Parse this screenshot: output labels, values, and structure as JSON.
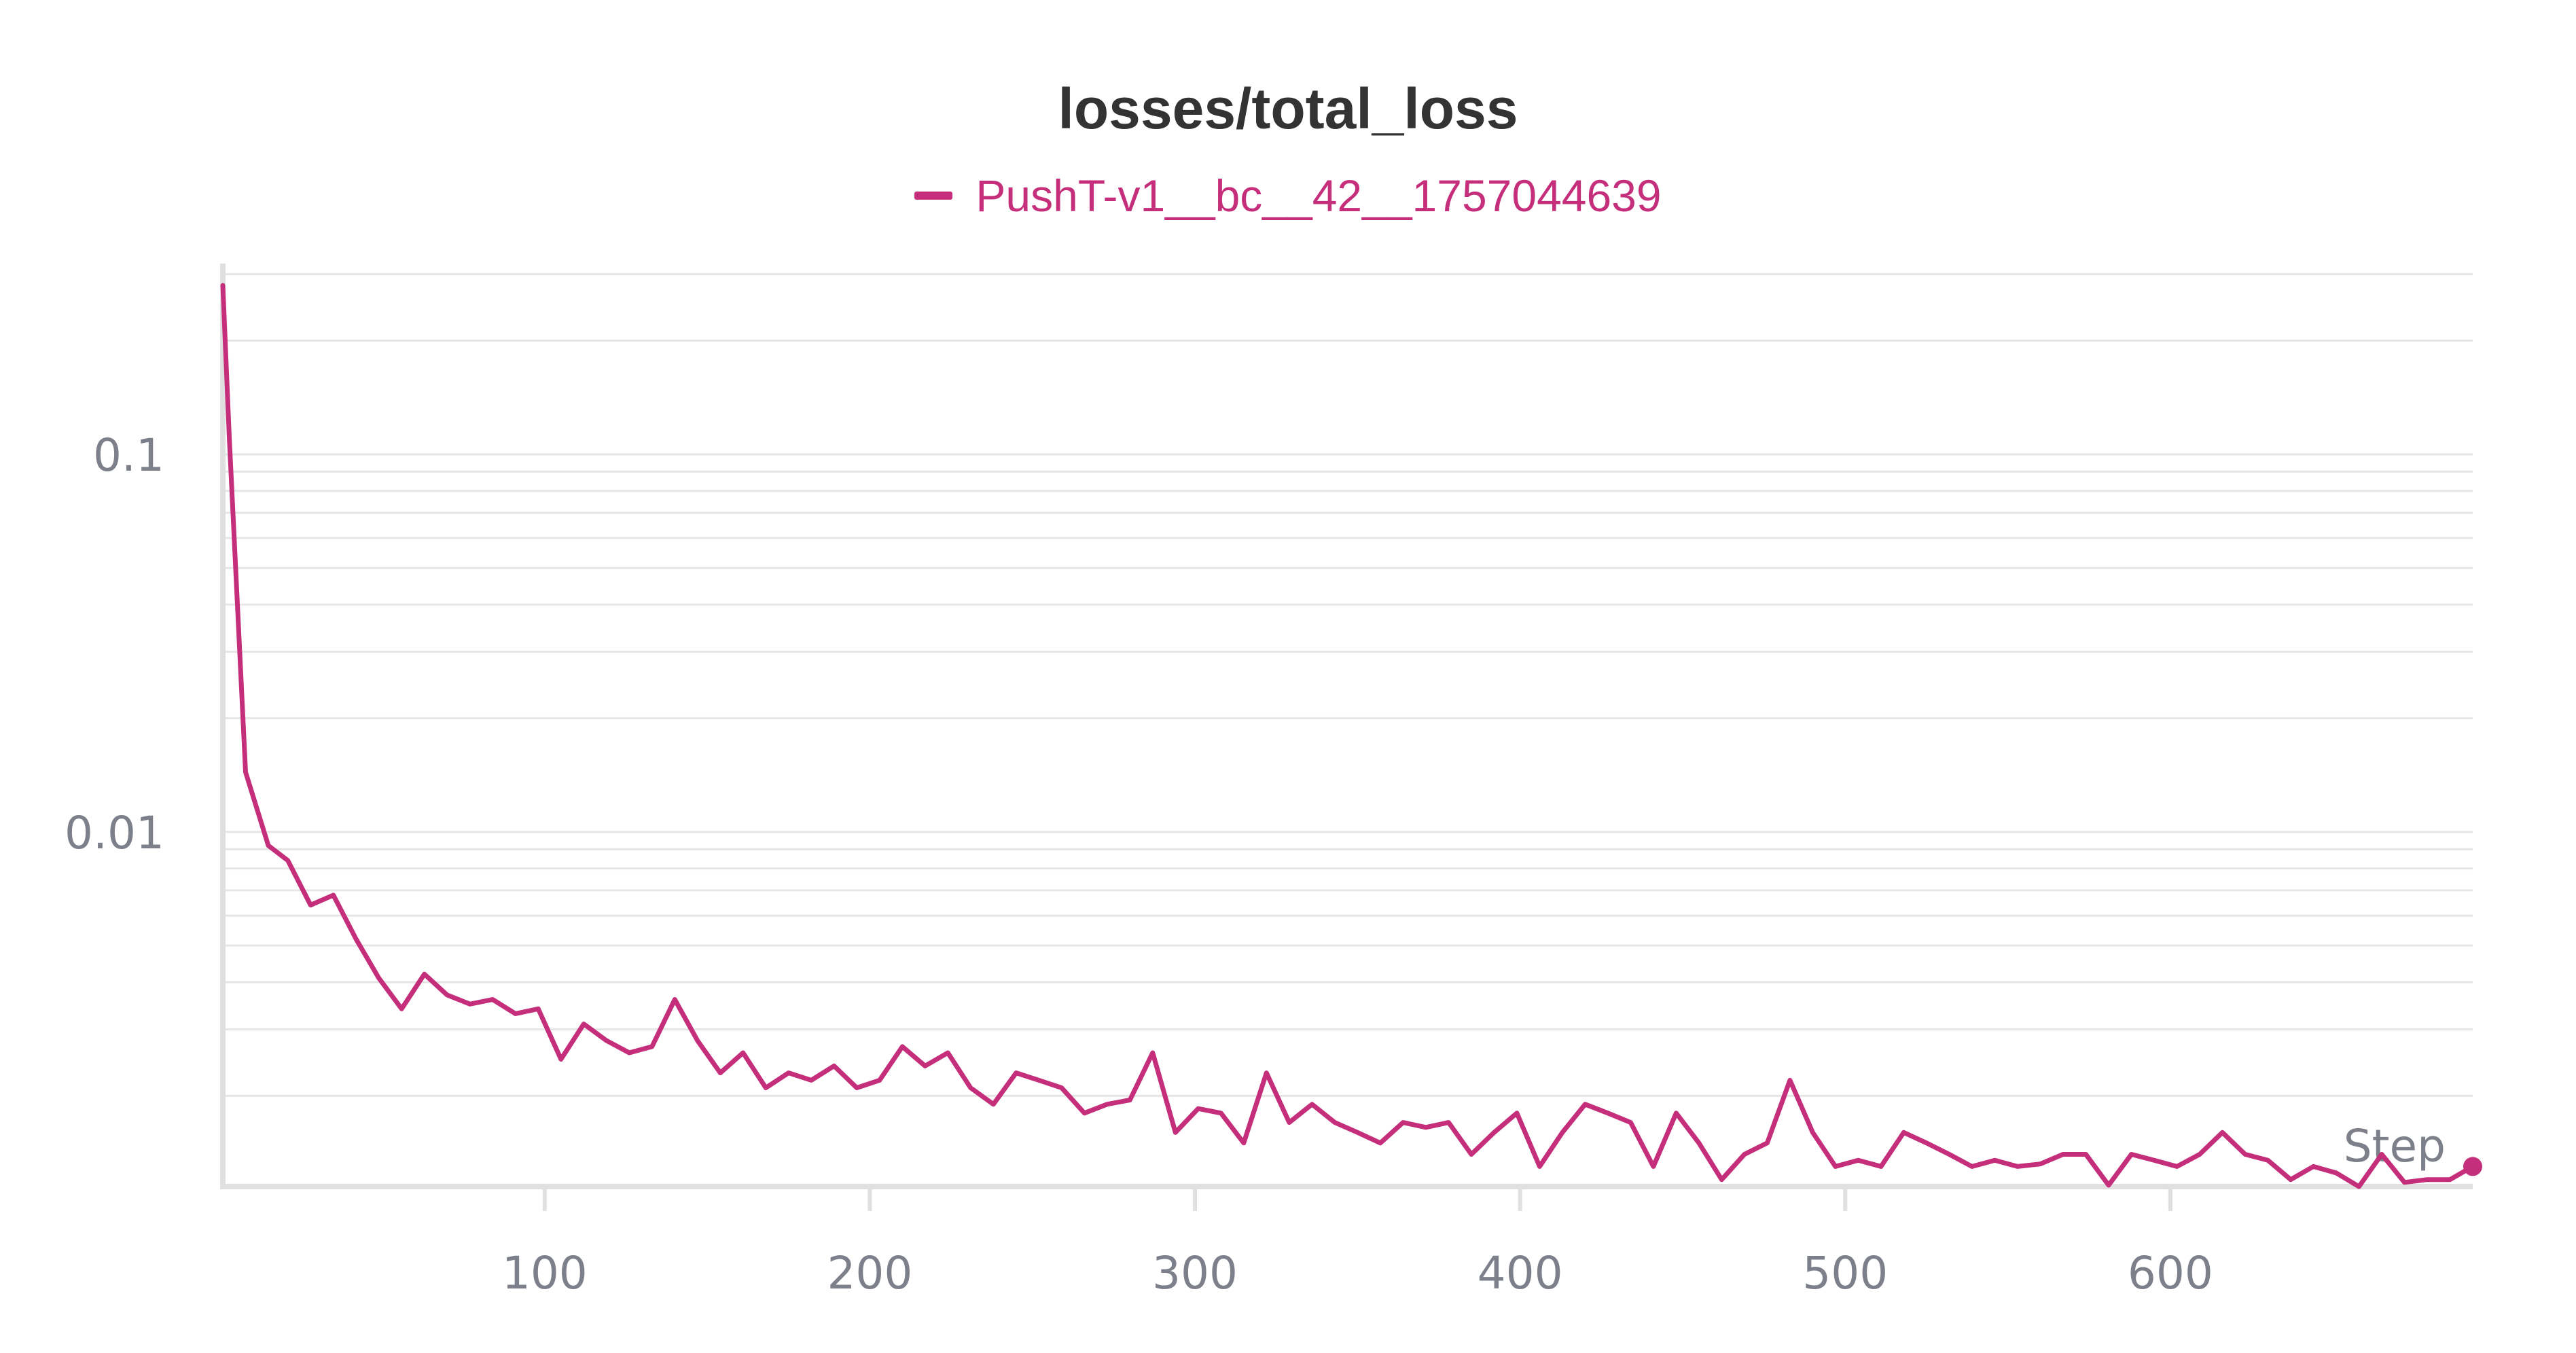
{
  "colors": {
    "series": "#c42e7a",
    "grid": "#e6e6e6",
    "axis": "#e0e0e0",
    "tick": "#7d7f8a",
    "title": "#333333"
  },
  "chart_data": {
    "type": "line",
    "title": "losses/total_loss",
    "xlabel": "Step",
    "ylabel": "",
    "yscale": "log",
    "xlim": [
      1,
      693
    ],
    "ylim": [
      0.00115,
      0.32
    ],
    "xticks": [
      100,
      200,
      300,
      400,
      500,
      600
    ],
    "xtick_labels": [
      "100",
      "200",
      "300",
      "400",
      "500",
      "600"
    ],
    "yticks": [
      0.01,
      0.1
    ],
    "ytick_labels": [
      "0.01",
      "0.1"
    ],
    "grid": true,
    "legend": "top-center",
    "series": [
      {
        "name": "PushT-v1__bc__42__1757044639",
        "x": [
          1,
          3,
          8,
          15,
          21,
          28,
          35,
          42,
          49,
          56,
          63,
          70,
          77,
          84,
          91,
          98,
          105,
          112,
          119,
          126,
          133,
          140,
          147,
          154,
          161,
          168,
          175,
          182,
          189,
          196,
          203,
          210,
          217,
          224,
          231,
          238,
          245,
          252,
          259,
          266,
          273,
          280,
          287,
          294,
          301,
          308,
          315,
          322,
          329,
          336,
          343,
          350,
          357,
          364,
          371,
          378,
          385,
          392,
          399,
          406,
          413,
          420,
          427,
          434,
          441,
          448,
          455,
          462,
          469,
          476,
          483,
          490,
          497,
          504,
          511,
          518,
          525,
          532,
          539,
          546,
          553,
          560,
          567,
          574,
          581,
          588,
          595,
          602,
          609,
          616,
          623,
          630,
          637,
          644,
          651,
          658,
          665,
          672,
          679,
          686,
          693
        ],
        "y": [
          0.28,
          0.11,
          0.0144,
          0.0092,
          0.0084,
          0.0064,
          0.0068,
          0.0052,
          0.0041,
          0.0034,
          0.0042,
          0.0037,
          0.0035,
          0.0036,
          0.0033,
          0.0034,
          0.0025,
          0.0031,
          0.0028,
          0.0026,
          0.0027,
          0.0036,
          0.0028,
          0.0023,
          0.0026,
          0.0021,
          0.0023,
          0.0022,
          0.0024,
          0.0021,
          0.0022,
          0.0027,
          0.0024,
          0.0026,
          0.0021,
          0.0019,
          0.0023,
          0.0022,
          0.0021,
          0.0018,
          0.0019,
          0.00195,
          0.0026,
          0.0016,
          0.00185,
          0.0018,
          0.0015,
          0.0023,
          0.0017,
          0.0019,
          0.0017,
          0.0016,
          0.0015,
          0.0017,
          0.00165,
          0.0017,
          0.0014,
          0.0016,
          0.0018,
          0.0013,
          0.0016,
          0.0019,
          0.0018,
          0.0017,
          0.0013,
          0.0018,
          0.0015,
          0.0012,
          0.0014,
          0.0015,
          0.0022,
          0.0016,
          0.0013,
          0.00135,
          0.0013,
          0.0016,
          0.0015,
          0.0014,
          0.0013,
          0.00135,
          0.0013,
          0.00132,
          0.0014,
          0.0014,
          0.00116,
          0.0014,
          0.00135,
          0.0013,
          0.0014,
          0.0016,
          0.0014,
          0.00135,
          0.0012,
          0.0013,
          0.00125,
          0.00115,
          0.0014,
          0.00118,
          0.0012,
          0.0012,
          0.0013
        ]
      }
    ]
  }
}
